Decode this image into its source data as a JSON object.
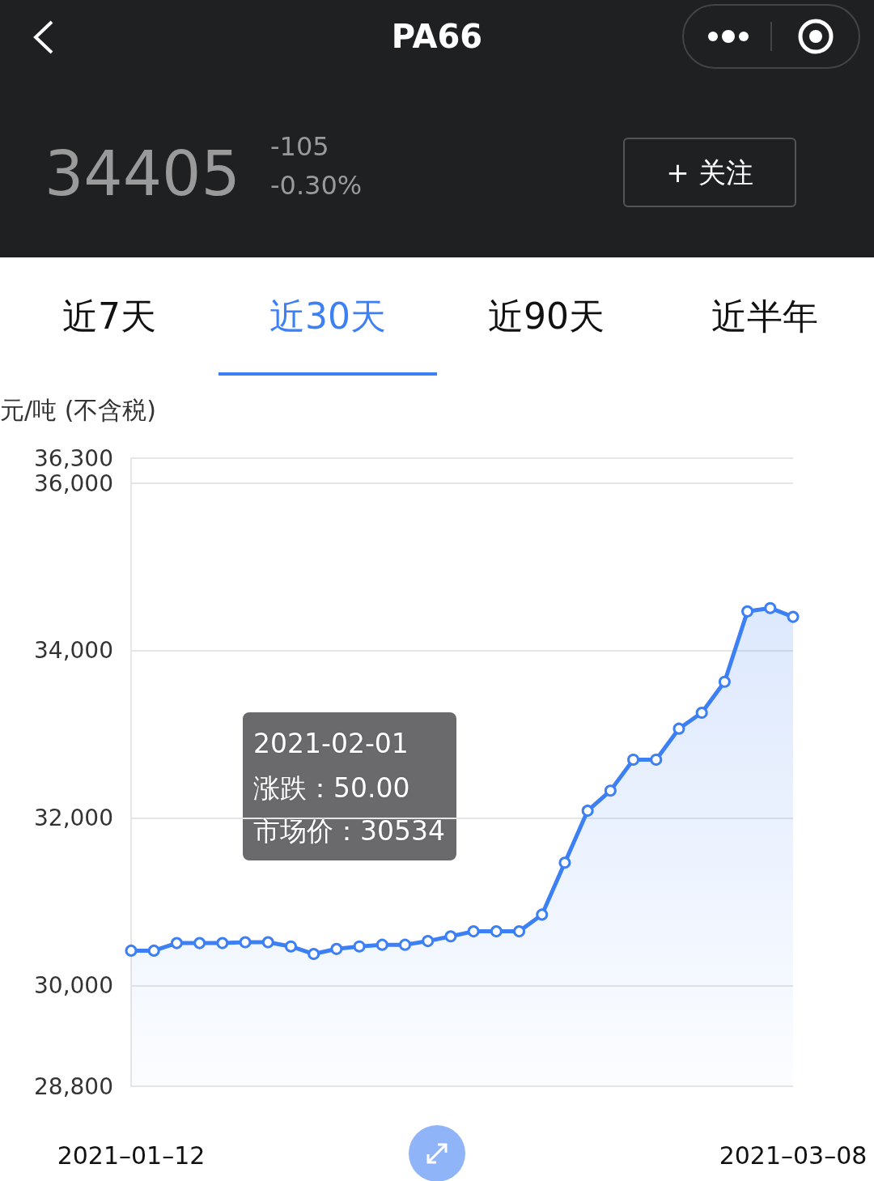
{
  "chart_data": {
    "type": "area",
    "title": "PA66",
    "ylabel": "元/吨 (不含税)",
    "categories": [
      "2021–01–12",
      null,
      null,
      null,
      null,
      null,
      null,
      null,
      null,
      null,
      null,
      null,
      null,
      null,
      null,
      null,
      null,
      null,
      null,
      null,
      null,
      null,
      null,
      null,
      null,
      null,
      null,
      null,
      null,
      "2021–03–08"
    ],
    "series": [
      {
        "color": "#3d7ff5",
        "values": [
          30420,
          30420,
          30510,
          30510,
          30510,
          30520,
          30520,
          30470,
          30380,
          30440,
          30470,
          30490,
          30490,
          30534,
          30590,
          30650,
          30650,
          30650,
          30850,
          31470,
          32090,
          32330,
          32700,
          32700,
          33070,
          33260,
          33630,
          34470,
          34510,
          34405
        ]
      }
    ],
    "ylim": [
      28800,
      36300
    ],
    "yticks": [
      {
        "value": 28800,
        "label": "28,800"
      },
      {
        "value": 30000,
        "label": "30,000"
      },
      {
        "value": 32000,
        "label": "32,000"
      },
      {
        "value": 34000,
        "label": "34,000"
      },
      {
        "value": 36000,
        "label": "36,000"
      },
      {
        "value": 36300,
        "label": "36,300"
      }
    ],
    "grid": "y",
    "marker": "circle",
    "annotations": [
      "34405",
      "-105",
      "-0.30%",
      "+ 关注",
      "近7天",
      "近30天",
      "近90天",
      "近半年",
      "2021-02-01",
      "涨跌：50.00",
      "市场价：30534"
    ]
  }
}
